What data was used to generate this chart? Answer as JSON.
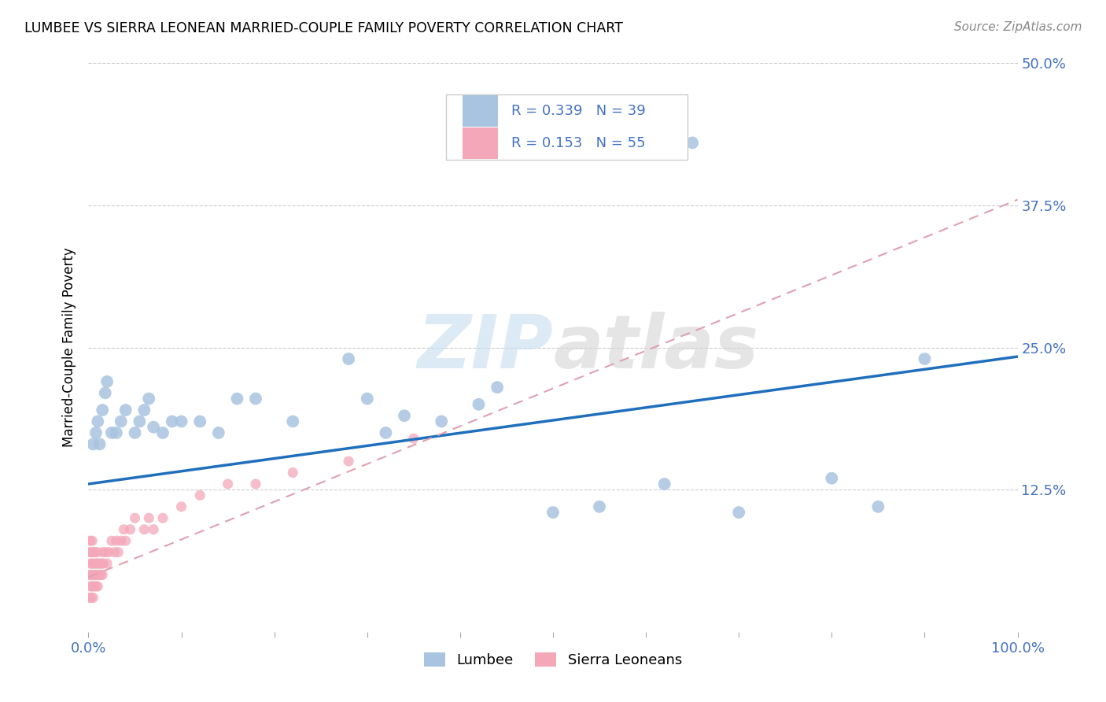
{
  "title": "LUMBEE VS SIERRA LEONEAN MARRIED-COUPLE FAMILY POVERTY CORRELATION CHART",
  "source": "Source: ZipAtlas.com",
  "ylabel_label": "Married-Couple Family Poverty",
  "legend_label1": "Lumbee",
  "legend_label2": "Sierra Leoneans",
  "R1": 0.339,
  "N1": 39,
  "R2": 0.153,
  "N2": 55,
  "color1": "#a8c4e0",
  "color2": "#f4a7b9",
  "line1_color": "#1f6fbd",
  "line2_color": "#e0a0b0",
  "watermark_color": "#d8e8f0",
  "lumbee_x": [
    0.005,
    0.008,
    0.01,
    0.012,
    0.015,
    0.018,
    0.02,
    0.025,
    0.03,
    0.035,
    0.04,
    0.05,
    0.055,
    0.06,
    0.065,
    0.07,
    0.08,
    0.09,
    0.1,
    0.12,
    0.14,
    0.16,
    0.18,
    0.22,
    0.28,
    0.3,
    0.32,
    0.34,
    0.38,
    0.42,
    0.44,
    0.5,
    0.55,
    0.62,
    0.65,
    0.7,
    0.8,
    0.85,
    0.9
  ],
  "lumbee_y": [
    0.165,
    0.175,
    0.185,
    0.165,
    0.195,
    0.21,
    0.22,
    0.175,
    0.175,
    0.185,
    0.195,
    0.175,
    0.185,
    0.195,
    0.205,
    0.18,
    0.175,
    0.185,
    0.185,
    0.185,
    0.175,
    0.205,
    0.205,
    0.185,
    0.24,
    0.205,
    0.175,
    0.19,
    0.185,
    0.2,
    0.215,
    0.105,
    0.11,
    0.13,
    0.43,
    0.105,
    0.135,
    0.11,
    0.24
  ],
  "sierra_x": [
    0.001,
    0.001,
    0.001,
    0.002,
    0.002,
    0.002,
    0.003,
    0.003,
    0.003,
    0.004,
    0.004,
    0.004,
    0.005,
    0.005,
    0.005,
    0.006,
    0.006,
    0.007,
    0.007,
    0.008,
    0.008,
    0.009,
    0.009,
    0.01,
    0.01,
    0.011,
    0.012,
    0.013,
    0.014,
    0.015,
    0.015,
    0.016,
    0.018,
    0.02,
    0.022,
    0.025,
    0.028,
    0.03,
    0.032,
    0.035,
    0.038,
    0.04,
    0.045,
    0.05,
    0.06,
    0.065,
    0.07,
    0.08,
    0.1,
    0.12,
    0.15,
    0.18,
    0.22,
    0.28,
    0.35
  ],
  "sierra_y": [
    0.03,
    0.05,
    0.07,
    0.04,
    0.06,
    0.08,
    0.03,
    0.05,
    0.07,
    0.04,
    0.06,
    0.08,
    0.03,
    0.05,
    0.07,
    0.04,
    0.06,
    0.05,
    0.07,
    0.04,
    0.06,
    0.05,
    0.07,
    0.04,
    0.06,
    0.05,
    0.06,
    0.05,
    0.06,
    0.05,
    0.07,
    0.06,
    0.07,
    0.06,
    0.07,
    0.08,
    0.07,
    0.08,
    0.07,
    0.08,
    0.09,
    0.08,
    0.09,
    0.1,
    0.09,
    0.1,
    0.09,
    0.1,
    0.11,
    0.12,
    0.13,
    0.13,
    0.14,
    0.15,
    0.17
  ],
  "xlim": [
    0.0,
    1.0
  ],
  "ylim": [
    0.0,
    0.5
  ],
  "line1_x0": 0.0,
  "line1_y0": 0.13,
  "line1_x1": 1.0,
  "line1_y1": 0.242,
  "line2_x0": 0.0,
  "line2_y0": 0.048,
  "line2_x1": 1.0,
  "line2_y1": 0.38
}
